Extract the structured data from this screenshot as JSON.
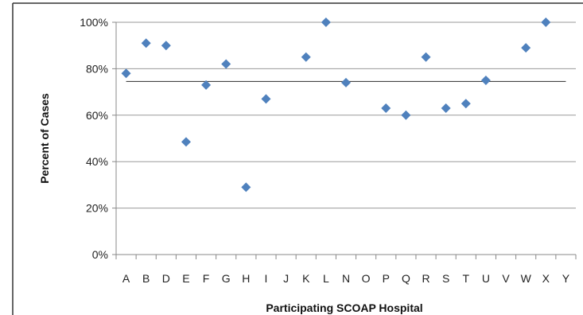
{
  "chart_data": {
    "type": "scatter",
    "title": "",
    "xlabel": "Participating SCOAP Hospital",
    "ylabel": "Percent of Cases",
    "categories": [
      "A",
      "B",
      "D",
      "E",
      "F",
      "G",
      "H",
      "I",
      "J",
      "K",
      "L",
      "N",
      "O",
      "P",
      "Q",
      "R",
      "S",
      "T",
      "U",
      "V",
      "W",
      "X",
      "Y"
    ],
    "y_ticks": [
      "0%",
      "20%",
      "40%",
      "60%",
      "80%",
      "100%"
    ],
    "ylim": [
      0,
      100
    ],
    "grid": true,
    "legend": "none",
    "series": [
      {
        "values": [
          78,
          91,
          90,
          48.5,
          73,
          82,
          29,
          67,
          null,
          85,
          100,
          74,
          null,
          63,
          60,
          85,
          63,
          65,
          75,
          null,
          89,
          100,
          null
        ],
        "marker": "diamond",
        "color": "#4f81bd"
      }
    ],
    "reference_line": {
      "value": 74.5,
      "color": "#444444"
    },
    "colors": {
      "gridline": "#9a9a9a",
      "axis": "#888888",
      "frame": "#333333"
    }
  }
}
